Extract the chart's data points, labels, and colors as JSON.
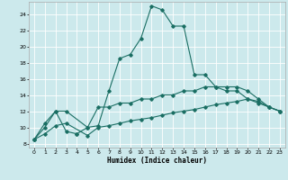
{
  "title": "",
  "xlabel": "Humidex (Indice chaleur)",
  "xlim": [
    -0.5,
    23.5
  ],
  "ylim": [
    7.5,
    25.5
  ],
  "yticks": [
    8,
    10,
    12,
    14,
    16,
    18,
    20,
    22,
    24
  ],
  "xticks": [
    0,
    1,
    2,
    3,
    4,
    5,
    6,
    7,
    8,
    9,
    10,
    11,
    12,
    13,
    14,
    15,
    16,
    17,
    18,
    19,
    20,
    21,
    22,
    23
  ],
  "bg_color": "#cce9ec",
  "grid_color": "#ffffff",
  "line_color": "#1a6e63",
  "line1_x": [
    0,
    1,
    2,
    3,
    4,
    4,
    5,
    6,
    7,
    8,
    9,
    10,
    11,
    12,
    13,
    14,
    15,
    16,
    17,
    18,
    19,
    20,
    21,
    22,
    23
  ],
  "line1_y": [
    8.5,
    10.0,
    12.0,
    9.5,
    9.2,
    9.2,
    10.0,
    10.2,
    14.5,
    18.5,
    19.0,
    21.0,
    25.0,
    24.5,
    22.5,
    22.5,
    16.5,
    16.5,
    15.0,
    14.5,
    14.5,
    13.5,
    13.0,
    12.5,
    12.0
  ],
  "line2_x": [
    0,
    1,
    2,
    3,
    5,
    6,
    7,
    8,
    9,
    10,
    11,
    12,
    13,
    14,
    15,
    16,
    17,
    18,
    19,
    20,
    21,
    22,
    23
  ],
  "line2_y": [
    8.5,
    10.5,
    12.0,
    12.0,
    10.0,
    12.5,
    12.5,
    13.0,
    13.0,
    13.5,
    13.5,
    14.0,
    14.0,
    14.5,
    14.5,
    15.0,
    15.0,
    15.0,
    15.0,
    14.5,
    13.5,
    12.5,
    12.0
  ],
  "line3_x": [
    0,
    1,
    2,
    3,
    5,
    6,
    7,
    8,
    9,
    10,
    11,
    12,
    13,
    14,
    15,
    16,
    17,
    18,
    19,
    20,
    21,
    22,
    23
  ],
  "line3_y": [
    8.5,
    9.2,
    10.2,
    10.5,
    9.0,
    10.0,
    10.2,
    10.5,
    10.8,
    11.0,
    11.2,
    11.5,
    11.8,
    12.0,
    12.2,
    12.5,
    12.8,
    13.0,
    13.2,
    13.5,
    13.2,
    12.5,
    12.0
  ]
}
